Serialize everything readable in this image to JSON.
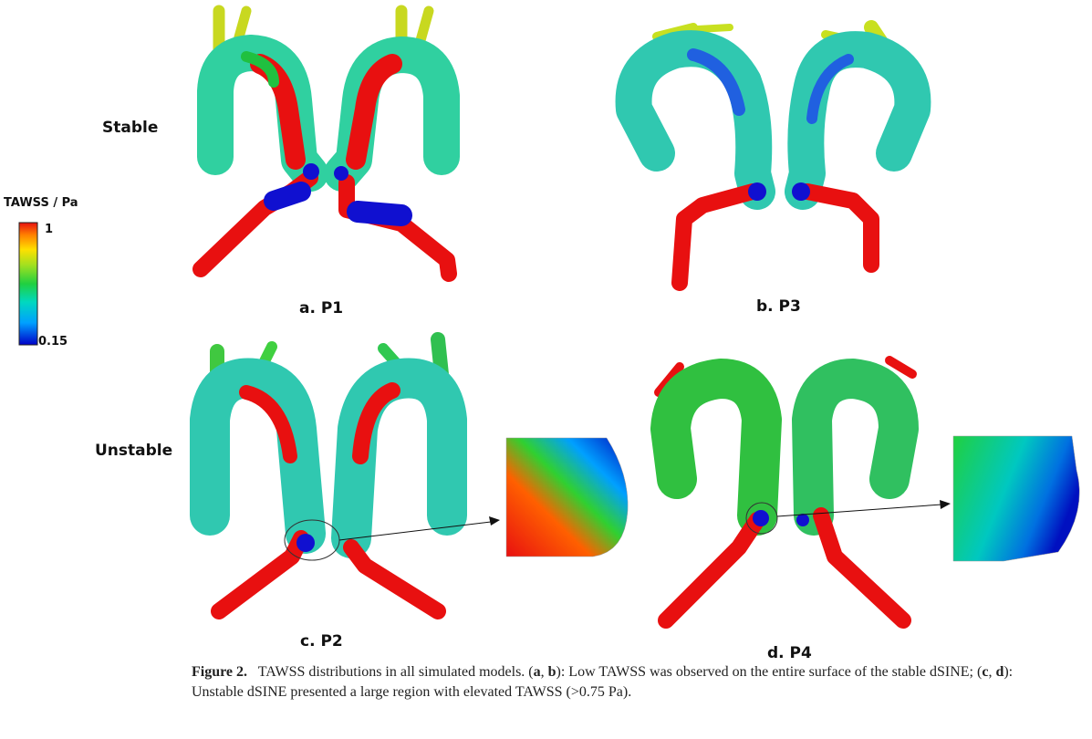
{
  "row_labels": {
    "stable": "Stable",
    "unstable": "Unstable"
  },
  "colorbar": {
    "title": "TAWSS / Pa",
    "max_label": "1",
    "min_label": "0.15",
    "colors": [
      "#0000c8",
      "#00a0ff",
      "#00d8c0",
      "#20d040",
      "#a0e020",
      "#ffe000",
      "#ff8000",
      "#e81010"
    ]
  },
  "panels": [
    {
      "id": "a",
      "label": "a. P1"
    },
    {
      "id": "b",
      "label": "b. P3"
    },
    {
      "id": "c",
      "label": "c. P2"
    },
    {
      "id": "d",
      "label": "d. P4"
    }
  ],
  "caption": {
    "figure_label": "Figure 2.",
    "text_1": "TAWSS distributions in all simulated models. (",
    "ref_a": "a",
    "sep_1": ", ",
    "ref_b": "b",
    "text_2": "): Low TAWSS was observed on the entire surface of the stable dSINE; (",
    "ref_c": "c",
    "sep_2": ", ",
    "ref_d": "d",
    "text_3": "): Unstable dSINE presented a large region with elevated TAWSS (>0.75 Pa)."
  }
}
